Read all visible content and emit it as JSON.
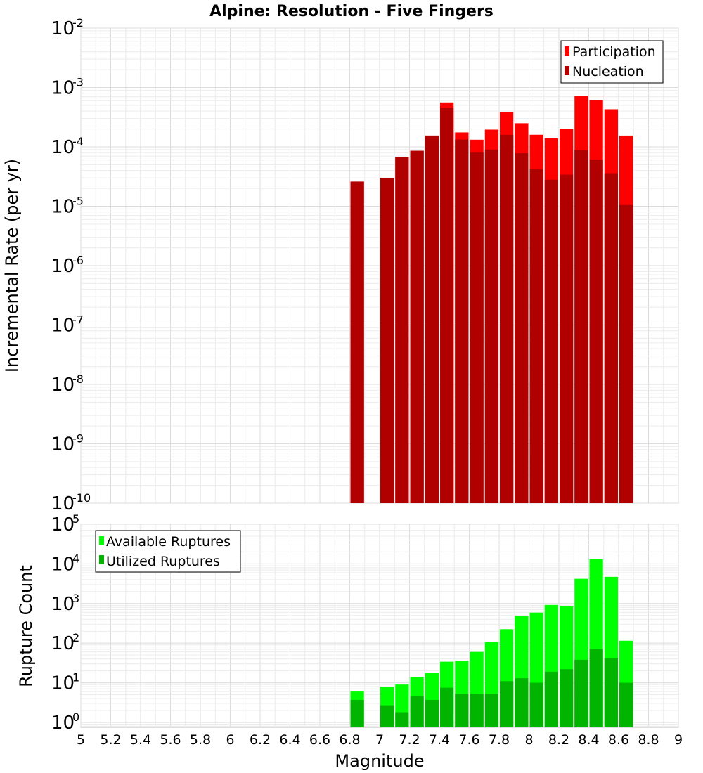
{
  "chart_data": [
    {
      "type": "bar",
      "title": "Alpine: Resolution - Five Fingers",
      "xlabel": "",
      "ylabel": "Incremental Rate (per yr)",
      "yscale": "log",
      "ylim": [
        1e-10,
        0.01
      ],
      "xlim": [
        5,
        9
      ],
      "grid": true,
      "legend_position": "top-right",
      "x": [
        6.85,
        7.05,
        7.15,
        7.25,
        7.35,
        7.45,
        7.55,
        7.65,
        7.75,
        7.85,
        7.95,
        8.05,
        8.15,
        8.25,
        8.35,
        8.45,
        8.55,
        8.65
      ],
      "series": [
        {
          "name": "Participation",
          "color": "#ff0000",
          "values": [
            2.6e-05,
            3e-05,
            6.8e-05,
            8.6e-05,
            0.000155,
            0.00056,
            0.000175,
            0.000132,
            0.000195,
            0.00038,
            0.00025,
            0.00016,
            0.00014,
            0.0002,
            0.00073,
            0.00061,
            0.00043,
            0.000155
          ]
        },
        {
          "name": "Nucleation",
          "color": "#b00000",
          "values": [
            2.6e-05,
            3e-05,
            6.8e-05,
            8.6e-05,
            0.000155,
            0.00046,
            0.000133,
            8e-05,
            9e-05,
            0.00016,
            7.8e-05,
            4.2e-05,
            2.8e-05,
            3.4e-05,
            8.8e-05,
            6.1e-05,
            3.6e-05,
            1.05e-05
          ]
        }
      ]
    },
    {
      "type": "bar",
      "title": "",
      "xlabel": "Magnitude",
      "ylabel": "Rupture Count",
      "yscale": "log",
      "ylim": [
        0.75,
        100000
      ],
      "xlim": [
        5,
        9
      ],
      "grid": true,
      "legend_position": "top-left",
      "x": [
        6.85,
        7.05,
        7.15,
        7.25,
        7.35,
        7.45,
        7.55,
        7.65,
        7.75,
        7.85,
        7.95,
        8.05,
        8.15,
        8.25,
        8.35,
        8.45,
        8.55,
        8.65
      ],
      "series": [
        {
          "name": "Available Ruptures",
          "color": "#00ff00",
          "values": [
            6,
            8,
            9,
            14,
            18,
            34,
            36,
            60,
            105,
            225,
            490,
            590,
            920,
            850,
            4200,
            13000,
            4700,
            115
          ]
        },
        {
          "name": "Utilized Ruptures",
          "color": "#00b400",
          "values": [
            3.7,
            2.7,
            1.8,
            4.6,
            3.7,
            7.5,
            5.3,
            5.3,
            5.3,
            11,
            13,
            10,
            19,
            22,
            38,
            71,
            42,
            10
          ]
        }
      ]
    }
  ],
  "x_ticks": [
    "5",
    "5.2",
    "5.4",
    "5.6",
    "5.8",
    "6",
    "6.2",
    "6.4",
    "6.6",
    "6.8",
    "7",
    "7.2",
    "7.4",
    "7.6",
    "7.8",
    "8",
    "8.2",
    "8.4",
    "8.6",
    "8.8",
    "9"
  ],
  "top_y_ticks": [
    {
      "base": "10",
      "exp": "-10"
    },
    {
      "base": "10",
      "exp": "-9"
    },
    {
      "base": "10",
      "exp": "-8"
    },
    {
      "base": "10",
      "exp": "-7"
    },
    {
      "base": "10",
      "exp": "-6"
    },
    {
      "base": "10",
      "exp": "-5"
    },
    {
      "base": "10",
      "exp": "-4"
    },
    {
      "base": "10",
      "exp": "-3"
    },
    {
      "base": "10",
      "exp": "-2"
    }
  ],
  "bottom_y_ticks": [
    {
      "base": "10",
      "exp": "0"
    },
    {
      "base": "10",
      "exp": "1"
    },
    {
      "base": "10",
      "exp": "2"
    },
    {
      "base": "10",
      "exp": "3"
    },
    {
      "base": "10",
      "exp": "4"
    },
    {
      "base": "10",
      "exp": "5"
    }
  ]
}
